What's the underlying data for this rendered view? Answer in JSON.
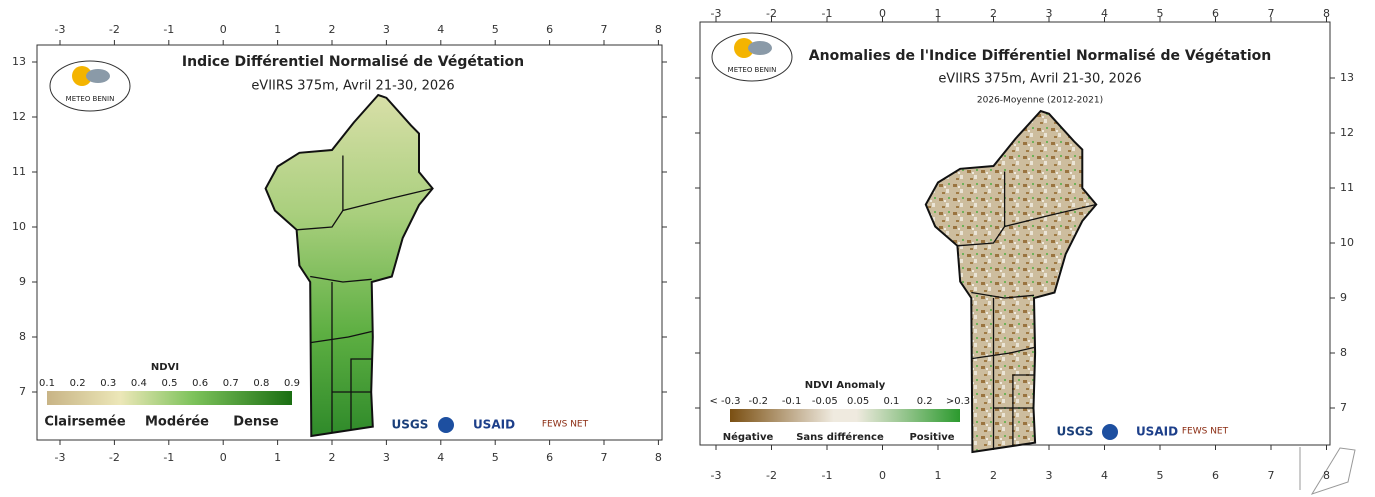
{
  "panels": [
    {
      "title": "Indice Différentiel Normalisé de Végétation",
      "subtitle": "eVIIRS 375m, Avril 21-30, 2026",
      "logo": "METEO BENIN",
      "xticks": [
        -3,
        -2,
        -1,
        0,
        1,
        2,
        3,
        4,
        5,
        6,
        7,
        8
      ],
      "yticks": [
        7,
        8,
        9,
        10,
        11,
        12,
        13
      ],
      "legend": {
        "title": "NDVI",
        "labels": [
          "0.1",
          "0.2",
          "0.3",
          "0.4",
          "0.5",
          "0.6",
          "0.7",
          "0.8",
          "0.9"
        ],
        "classes": [
          "Clairsemée",
          "Modérée",
          "Dense"
        ]
      },
      "partners": [
        "USGS",
        "USAID",
        "FEWS NET"
      ]
    },
    {
      "title": "Anomalies de l'Indice Différentiel Normalisé de Végétation",
      "subtitle": "eVIIRS 375m, Avril 21-30, 2026",
      "note": "2026-Moyenne (2012-2021)",
      "logo": "METEO BENIN",
      "xticks": [
        -3,
        -2,
        -1,
        0,
        1,
        2,
        3,
        4,
        5,
        6,
        7,
        8
      ],
      "yticks": [
        7,
        8,
        9,
        10,
        11,
        12,
        13
      ],
      "legend": {
        "title": "NDVI Anomaly",
        "labels": [
          "< -0.3",
          "-0.2",
          "-0.1",
          "-0.05",
          "0.05",
          "0.1",
          "0.2",
          ">0.3"
        ],
        "classes": [
          "Négative",
          "Sans différence",
          "Positive"
        ]
      },
      "partners": [
        "USGS",
        "USAID",
        "FEWS NET"
      ]
    }
  ]
}
